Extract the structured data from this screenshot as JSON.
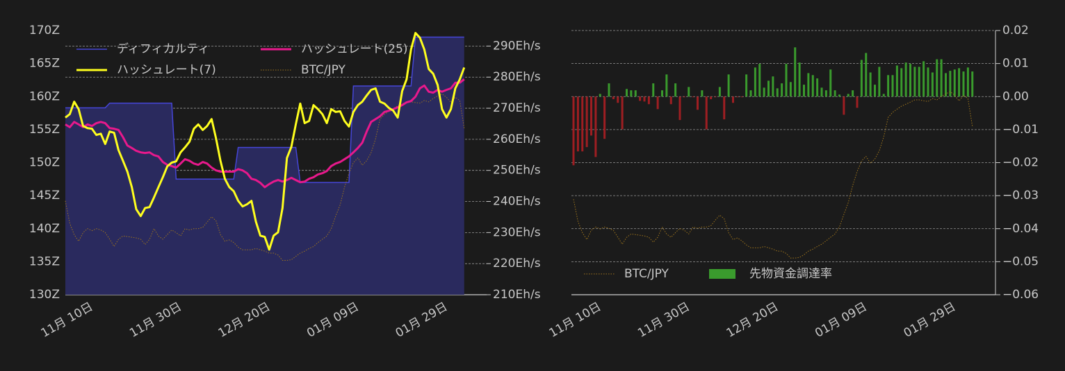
{
  "chart_data": [
    {
      "type": "line",
      "categories": [
        null,
        null,
        null,
        null,
        null,
        null,
        "11月 10日",
        null,
        null,
        null,
        null,
        null,
        null,
        null,
        null,
        null,
        null,
        null,
        null,
        null,
        null,
        null,
        null,
        null,
        null,
        null,
        "11月 30日",
        null,
        null,
        null,
        null,
        null,
        null,
        null,
        null,
        null,
        null,
        null,
        null,
        null,
        null,
        null,
        null,
        null,
        null,
        null,
        "12月 20日",
        null,
        null,
        null,
        null,
        null,
        null,
        null,
        null,
        null,
        null,
        null,
        null,
        null,
        null,
        null,
        null,
        null,
        null,
        null,
        "01月 09日",
        null,
        null,
        null,
        null,
        null,
        null,
        null,
        null,
        null,
        null,
        null,
        null,
        null,
        null,
        null,
        null,
        null,
        null,
        null,
        "01月 29日",
        null,
        null,
        null,
        null
      ],
      "ylim": [
        130,
        170
      ],
      "yticks": [
        {
          "value": 130,
          "label": "130Z"
        },
        {
          "value": 135,
          "label": "135Z"
        },
        {
          "value": 140,
          "label": "140Z"
        },
        {
          "value": 145,
          "label": "145Z"
        },
        {
          "value": 150,
          "label": "150Z"
        },
        {
          "value": 155,
          "label": "155Z"
        },
        {
          "value": 160,
          "label": "160Z"
        },
        {
          "value": 165,
          "label": "165Z"
        },
        {
          "value": 170,
          "label": "170Z"
        }
      ],
      "y2lim": [
        210,
        295
      ],
      "y2ticks": [
        {
          "value": 210,
          "label": "210Eh/s"
        },
        {
          "value": 220,
          "label": "220Eh/s"
        },
        {
          "value": 230,
          "label": "230Eh/s"
        },
        {
          "value": 240,
          "label": "240Eh/s"
        },
        {
          "value": 250,
          "label": "250Eh/s"
        },
        {
          "value": 260,
          "label": "260Eh/s"
        },
        {
          "value": 270,
          "label": "270Eh/s"
        },
        {
          "value": 280,
          "label": "280Eh/s"
        },
        {
          "value": 290,
          "label": "290Eh/s"
        }
      ],
      "grid": true,
      "legend": "top-left",
      "series": [
        {
          "name": "ディフィカルティ",
          "type": "area",
          "color": "#4646d8",
          "fill": "#2a2a5e",
          "values": [
            158.3,
            158.3,
            158.3,
            158.3,
            158.3,
            158.3,
            158.3,
            158.3,
            158.3,
            158.3,
            159,
            159,
            159,
            159,
            159,
            159,
            159,
            159,
            159,
            159,
            159,
            159,
            159,
            159,
            159,
            147.5,
            147.5,
            147.5,
            147.5,
            147.5,
            147.5,
            147.5,
            147.5,
            147.5,
            147.5,
            147.5,
            147.5,
            147.5,
            147.5,
            152.3,
            152.3,
            152.3,
            152.3,
            152.3,
            152.3,
            152.3,
            152.3,
            152.3,
            152.3,
            152.3,
            152.3,
            152.3,
            152.3,
            147,
            147,
            147,
            147,
            147,
            147,
            147,
            147,
            147,
            147,
            147,
            147,
            161.6,
            161.6,
            161.6,
            161.6,
            161.6,
            161.6,
            161.6,
            161.6,
            161.6,
            161.6,
            161.6,
            161.6,
            161.6,
            161.6,
            169,
            169,
            169,
            169,
            169,
            169,
            169,
            169,
            169,
            169,
            169,
            169
          ]
        },
        {
          "name": "ハッシュレート(25)",
          "axis": "y2",
          "color": "#e8198c",
          "values": [
            264.8,
            263.9,
            265.6,
            264.8,
            263.9,
            264.8,
            264.3,
            265.2,
            265.6,
            265.2,
            263.6,
            263.4,
            263.0,
            260.7,
            258.0,
            257.2,
            256.3,
            255.8,
            255.6,
            255.8,
            254.9,
            254.5,
            252.7,
            251.8,
            251.4,
            250.9,
            252.2,
            253.6,
            253.1,
            252.2,
            251.8,
            252.7,
            252.2,
            250.9,
            250.0,
            249.6,
            249.6,
            249.6,
            249.6,
            250.4,
            250.0,
            249.1,
            247.3,
            246.9,
            246.0,
            244.6,
            245.6,
            246.4,
            246.9,
            246.4,
            246.9,
            247.6,
            246.9,
            246.2,
            246.4,
            247.3,
            247.8,
            248.7,
            249.1,
            249.8,
            251.4,
            252.2,
            252.7,
            253.6,
            254.5,
            255.8,
            257.2,
            258.9,
            262.5,
            265.6,
            266.5,
            267.4,
            268.8,
            269.2,
            269.7,
            270.3,
            271.0,
            271.9,
            272.3,
            273.7,
            276.4,
            277.3,
            275.3,
            275.0,
            275.9,
            275.3,
            275.9,
            276.4,
            278.2,
            278.2,
            279.3
          ]
        },
        {
          "name": "ハッシュレート(7)",
          "axis": "y2",
          "color": "#ffff1e",
          "values": [
            267.0,
            268.1,
            272.1,
            269.7,
            264.3,
            263.6,
            263.4,
            261.4,
            261.8,
            258.5,
            262.5,
            262.1,
            256.5,
            253.1,
            249.6,
            244.6,
            237.5,
            235.3,
            237.9,
            238.2,
            241.3,
            244.6,
            247.8,
            251.3,
            252.5,
            252.9,
            255.8,
            257.4,
            259.2,
            263.4,
            264.8,
            263.0,
            264.3,
            266.5,
            260.3,
            253.1,
            247.3,
            244.6,
            243.3,
            240.2,
            238.4,
            239.1,
            240.2,
            233.5,
            229.0,
            228.6,
            224.5,
            229.0,
            230.1,
            237.9,
            254.0,
            257.6,
            264.8,
            271.5,
            265.2,
            265.9,
            271.0,
            269.7,
            268.1,
            265.2,
            269.7,
            268.8,
            269.0,
            265.9,
            264.1,
            268.8,
            271.0,
            272.1,
            274.1,
            275.9,
            276.4,
            272.1,
            271.5,
            270.1,
            269.2,
            267.0,
            275.5,
            279.3,
            288.9,
            294.2,
            292.7,
            288.9,
            282.6,
            281.1,
            277.5,
            269.7,
            267.0,
            269.7,
            276.4,
            279.3,
            283.1
          ]
        },
        {
          "name": "BTC/JPY",
          "color": "#a0761c",
          "linestyle": "dotted",
          "values": [
            144.2,
            140.8,
            139.1,
            138.1,
            139.4,
            140.0,
            139.7,
            140.0,
            139.8,
            139.4,
            138.4,
            137.3,
            138.4,
            138.9,
            138.8,
            138.7,
            138.6,
            138.4,
            137.6,
            138.4,
            140.0,
            138.9,
            138.4,
            139.1,
            139.8,
            139.4,
            138.9,
            140.0,
            139.8,
            140.0,
            140.0,
            140.2,
            141.0,
            141.8,
            141.2,
            139.1,
            138.1,
            138.3,
            137.9,
            137.2,
            136.8,
            136.8,
            136.8,
            137.0,
            136.8,
            136.6,
            136.3,
            136.3,
            136.0,
            135.2,
            135.2,
            135.3,
            135.8,
            136.3,
            136.6,
            137.0,
            137.3,
            137.9,
            138.4,
            138.9,
            140.0,
            141.9,
            143.6,
            146.3,
            148.4,
            150.0,
            150.7,
            149.6,
            150.3,
            151.5,
            153.6,
            156.6,
            157.3,
            157.8,
            158.2,
            158.6,
            158.9,
            159.2,
            159.2,
            159.1,
            159.0,
            159.4,
            159.2,
            159.7,
            160.1,
            160.4,
            159.9,
            159.1,
            159.9,
            159.4,
            155.2
          ]
        }
      ]
    },
    {
      "type": "bar",
      "categories": [
        null,
        null,
        null,
        null,
        null,
        null,
        "11月 10日",
        null,
        null,
        null,
        null,
        null,
        null,
        null,
        null,
        null,
        null,
        null,
        null,
        null,
        null,
        null,
        null,
        null,
        null,
        null,
        "11月 30日",
        null,
        null,
        null,
        null,
        null,
        null,
        null,
        null,
        null,
        null,
        null,
        null,
        null,
        null,
        null,
        null,
        null,
        null,
        null,
        "12月 20日",
        null,
        null,
        null,
        null,
        null,
        null,
        null,
        null,
        null,
        null,
        null,
        null,
        null,
        null,
        null,
        null,
        null,
        null,
        null,
        "01月 09日",
        null,
        null,
        null,
        null,
        null,
        null,
        null,
        null,
        null,
        null,
        null,
        null,
        null,
        null,
        null,
        null,
        null,
        null,
        null,
        "01月 29日",
        null,
        null,
        null,
        null
      ],
      "ylim": [
        -0.06,
        0.02
      ],
      "yticks": [
        {
          "value": -0.06,
          "label": "−0.06"
        },
        {
          "value": -0.05,
          "label": "−0.05"
        },
        {
          "value": -0.04,
          "label": "−0.04"
        },
        {
          "value": -0.03,
          "label": "−0.03"
        },
        {
          "value": -0.02,
          "label": "−0.02"
        },
        {
          "value": -0.01,
          "label": "−0.01"
        },
        {
          "value": 0,
          "label": "0.00"
        },
        0.01,
        0.02
      ],
      "y_axis_position": "right",
      "grid": true,
      "legend": "bottom-left",
      "series": [
        {
          "name": "BTC/JPY",
          "type": "line",
          "color": "#a0761c",
          "linestyle": "dotted",
          "values": [
            -0.0311,
            -0.0378,
            -0.0412,
            -0.0433,
            -0.0405,
            -0.0395,
            -0.0401,
            -0.0395,
            -0.0399,
            -0.0405,
            -0.0426,
            -0.0447,
            -0.0426,
            -0.0416,
            -0.0418,
            -0.042,
            -0.0422,
            -0.0426,
            -0.0441,
            -0.0426,
            -0.0395,
            -0.0416,
            -0.0426,
            -0.0412,
            -0.0399,
            -0.0405,
            -0.0416,
            -0.0395,
            -0.0399,
            -0.0395,
            -0.0395,
            -0.0391,
            -0.0374,
            -0.0359,
            -0.037,
            -0.0412,
            -0.0433,
            -0.0428,
            -0.0437,
            -0.0449,
            -0.0458,
            -0.0458,
            -0.0458,
            -0.0454,
            -0.0458,
            -0.0462,
            -0.0468,
            -0.0468,
            -0.0475,
            -0.0489,
            -0.0489,
            -0.0487,
            -0.0479,
            -0.0468,
            -0.0462,
            -0.0454,
            -0.0447,
            -0.0437,
            -0.0426,
            -0.0416,
            -0.0395,
            -0.0357,
            -0.0321,
            -0.0269,
            -0.0227,
            -0.0195,
            -0.0181,
            -0.0202,
            -0.0189,
            -0.0164,
            -0.0122,
            -0.0063,
            -0.0048,
            -0.0038,
            -0.0029,
            -0.0023,
            -0.0017,
            -0.001,
            -0.001,
            -0.0013,
            -0.0015,
            -0.0006,
            -0.001,
            0.0,
            0.0008,
            0.0015,
            0.0004,
            -0.0013,
            0.0004,
            -0.0006,
            -0.009
          ]
        },
        {
          "name": "先物資金調達率",
          "type": "bar",
          "color": "#3a9b2d",
          "negative_color": "#9e1e22",
          "values": [
            -0.0208,
            -0.0166,
            -0.0166,
            -0.0153,
            -0.0118,
            -0.0183,
            0.0008,
            -0.0128,
            0.004,
            -0.0008,
            -0.0019,
            -0.0099,
            0.0023,
            0.0019,
            0.0019,
            -0.0013,
            -0.0015,
            -0.0023,
            0.004,
            -0.0038,
            0.0019,
            0.0067,
            -0.0023,
            0.004,
            -0.0071,
            -0.0002,
            0.0029,
            -0.0002,
            -0.004,
            0.0019,
            -0.0099,
            -0.0008,
            -0.0002,
            0.0029,
            -0.0069,
            0.0067,
            -0.0019,
            -0.0002,
            -0.0002,
            0.0067,
            0.0019,
            0.0088,
            0.0099,
            0.0027,
            0.0048,
            0.0061,
            0.0025,
            0.004,
            0.0099,
            0.0044,
            0.0149,
            0.0103,
            0.0036,
            0.0071,
            0.0065,
            0.0055,
            0.0027,
            0.0019,
            0.0082,
            0.0019,
            0.0006,
            -0.0055,
            0.0008,
            0.0019,
            -0.0034,
            0.0111,
            0.0132,
            0.0073,
            0.0036,
            0.009,
            0.0008,
            0.0065,
            0.0065,
            0.0094,
            0.0086,
            0.0103,
            0.0099,
            0.009,
            0.009,
            0.0107,
            0.0088,
            0.0073,
            0.0113,
            0.0113,
            0.0071,
            0.0078,
            0.0082,
            0.0086,
            0.0076,
            0.0088,
            0.0076
          ]
        }
      ]
    }
  ]
}
